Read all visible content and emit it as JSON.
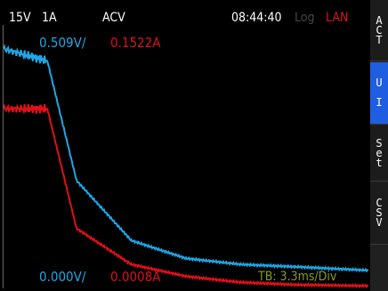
{
  "status": {
    "range_v": "15V",
    "range_a": "1A",
    "mode": "ACV",
    "time": "08:44:40",
    "log": "Log",
    "lan": "LAN"
  },
  "scale": {
    "u_top": "0.509V/",
    "i_top": "0.1522A",
    "u_bottom": "0.000V/",
    "i_bottom": "0.0008A",
    "timebase": "TB: 3.3ms/Div"
  },
  "softkeys": [
    {
      "label": "A\nC\nT",
      "active": false
    },
    {
      "label": "U\n\nI",
      "active": true
    },
    {
      "label": "S\ne\nt",
      "active": false
    },
    {
      "label": "C\nS\nV",
      "active": false
    }
  ],
  "colors": {
    "voltage_trace": "#1ea7e6",
    "current_trace": "#e0101a",
    "timebase": "#8a9a20",
    "active_key": "#1f5ee0",
    "log": "#444444",
    "lan": "#e0101a"
  },
  "chart_data": {
    "type": "line",
    "xlabel": "",
    "ylabel": "",
    "series": [
      {
        "x": [
          0,
          0.12,
          0.2,
          0.35,
          0.5,
          0.65,
          0.8,
          1.0
        ],
        "values": [
          0.2,
          0.19,
          0.09,
          0.04,
          0.025,
          0.02,
          0.018,
          0.015
        ]
      },
      {
        "x": [
          0,
          0.12,
          0.2,
          0.35,
          0.5,
          0.65,
          0.8,
          1.0
        ],
        "values": [
          0.15,
          0.15,
          0.05,
          0.02,
          0.01,
          0.005,
          0.003,
          0.002
        ]
      }
    ]
  }
}
